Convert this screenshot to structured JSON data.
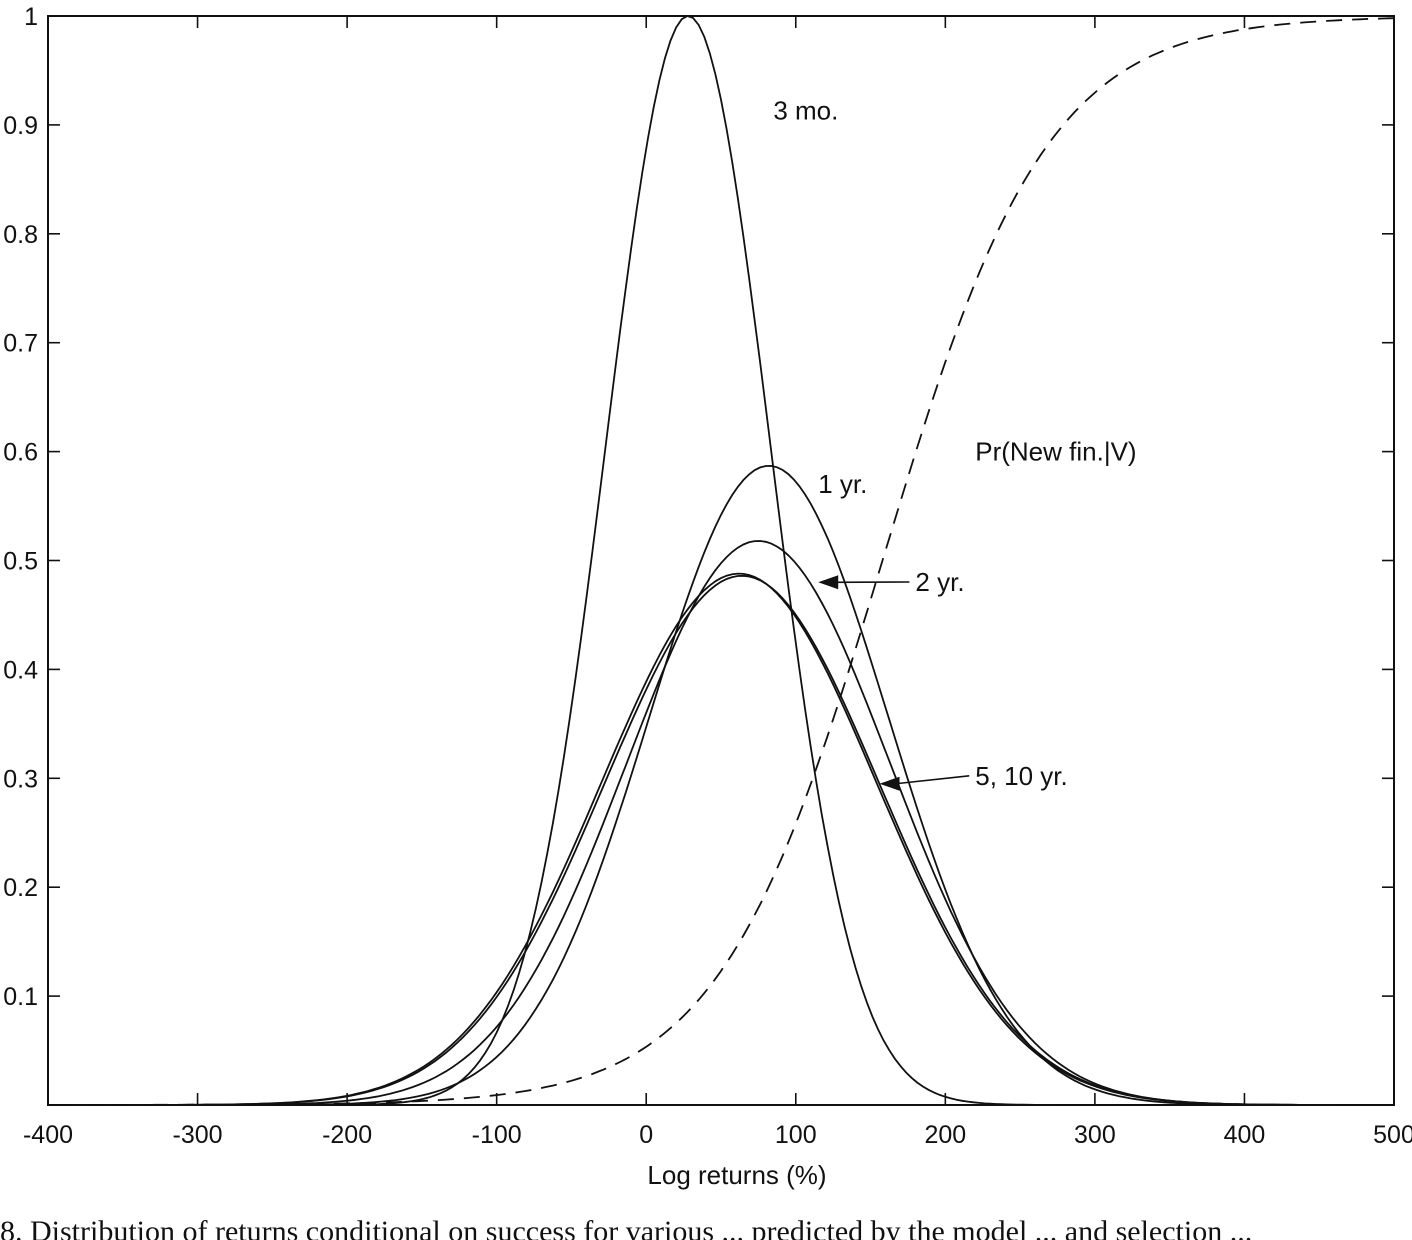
{
  "chart_data": {
    "type": "line",
    "xlabel": "Log returns (%)",
    "ylabel": "",
    "xlim": [
      -400,
      500
    ],
    "ylim": [
      0,
      1
    ],
    "x_ticks": [
      -400,
      -300,
      -200,
      -100,
      0,
      100,
      200,
      300,
      400,
      500
    ],
    "y_ticks": [
      0.1,
      0.2,
      0.3,
      0.4,
      0.5,
      0.6,
      0.7,
      0.8,
      0.9,
      1
    ],
    "x_tick_labels": [
      "-400",
      "-300",
      "-200",
      "-100",
      "0",
      "100",
      "200",
      "300",
      "400",
      "500"
    ],
    "y_tick_labels": [
      "0.1",
      "0.2",
      "0.3",
      "0.4",
      "0.5",
      "0.6",
      "0.7",
      "0.8",
      "0.9",
      "1"
    ],
    "grid": false,
    "series": [
      {
        "name": "3 mo.",
        "style": "solid",
        "kind": "normal",
        "peak_x": 28,
        "peak_y": 1.0,
        "sd": 55
      },
      {
        "name": "1 yr.",
        "style": "solid",
        "kind": "normal",
        "peak_x": 82,
        "peak_y": 0.587,
        "sd": 80
      },
      {
        "name": "2 yr.",
        "style": "solid",
        "kind": "normal",
        "peak_x": 75,
        "peak_y": 0.518,
        "sd": 88
      },
      {
        "name": "5, 10 yr.",
        "style": "solid",
        "kind": "normal",
        "peak_x": 62,
        "peak_y": 0.488,
        "sd": 92
      },
      {
        "name": "5, 10 yr.",
        "style": "solid",
        "kind": "normal",
        "peak_x": 64,
        "peak_y": 0.486,
        "sd": 92
      },
      {
        "name": "Pr(New fin.|V)",
        "style": "dashed",
        "kind": "logistic",
        "midpoint_x": 158,
        "scale": 55
      }
    ],
    "annotations": [
      {
        "text": "3 mo.",
        "x": 85,
        "y": 0.905
      },
      {
        "text": "1 yr.",
        "x": 115,
        "y": 0.562
      },
      {
        "text": "2 yr.",
        "x": 180,
        "y": 0.472,
        "arrow_to": [
          115,
          0.48
        ]
      },
      {
        "text": "5, 10 yr.",
        "x": 220,
        "y": 0.294,
        "arrow_to": [
          156,
          0.295
        ]
      },
      {
        "text": "Pr(New fin.|V)",
        "x": 220,
        "y": 0.592
      }
    ]
  },
  "caption": "8. Distribution of returns conditional on success for various ... predicted by the model ... and selection ..."
}
